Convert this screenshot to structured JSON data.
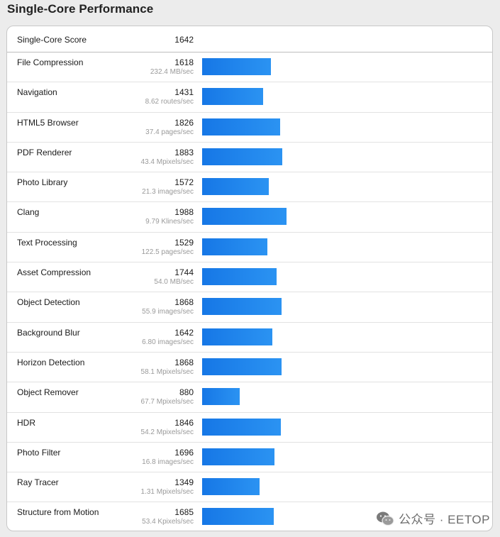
{
  "title": "Single-Core Performance",
  "summary": {
    "label": "Single-Core Score",
    "score": "1642"
  },
  "max_score": 2000,
  "bar_color": "#1b84ec",
  "tests": [
    {
      "name": "File Compression",
      "score": 1618,
      "score_text": "1618",
      "rate": "232.4 MB/sec"
    },
    {
      "name": "Navigation",
      "score": 1431,
      "score_text": "1431",
      "rate": "8.62 routes/sec"
    },
    {
      "name": "HTML5 Browser",
      "score": 1826,
      "score_text": "1826",
      "rate": "37.4 pages/sec"
    },
    {
      "name": "PDF Renderer",
      "score": 1883,
      "score_text": "1883",
      "rate": "43.4 Mpixels/sec"
    },
    {
      "name": "Photo Library",
      "score": 1572,
      "score_text": "1572",
      "rate": "21.3 images/sec"
    },
    {
      "name": "Clang",
      "score": 1988,
      "score_text": "1988",
      "rate": "9.79 Klines/sec"
    },
    {
      "name": "Text Processing",
      "score": 1529,
      "score_text": "1529",
      "rate": "122.5 pages/sec"
    },
    {
      "name": "Asset Compression",
      "score": 1744,
      "score_text": "1744",
      "rate": "54.0 MB/sec"
    },
    {
      "name": "Object Detection",
      "score": 1868,
      "score_text": "1868",
      "rate": "55.9 images/sec"
    },
    {
      "name": "Background Blur",
      "score": 1642,
      "score_text": "1642",
      "rate": "6.80 images/sec"
    },
    {
      "name": "Horizon Detection",
      "score": 1868,
      "score_text": "1868",
      "rate": "58.1 Mpixels/sec"
    },
    {
      "name": "Object Remover",
      "score": 880,
      "score_text": "880",
      "rate": "67.7 Mpixels/sec"
    },
    {
      "name": "HDR",
      "score": 1846,
      "score_text": "1846",
      "rate": "54.2 Mpixels/sec"
    },
    {
      "name": "Photo Filter",
      "score": 1696,
      "score_text": "1696",
      "rate": "16.8 images/sec"
    },
    {
      "name": "Ray Tracer",
      "score": 1349,
      "score_text": "1349",
      "rate": "1.31 Mpixels/sec"
    },
    {
      "name": "Structure from Motion",
      "score": 1685,
      "score_text": "1685",
      "rate": "53.4 Kpixels/sec"
    }
  ],
  "watermark": {
    "icon": "wechat-icon",
    "text": "公众号 · EETOP"
  }
}
